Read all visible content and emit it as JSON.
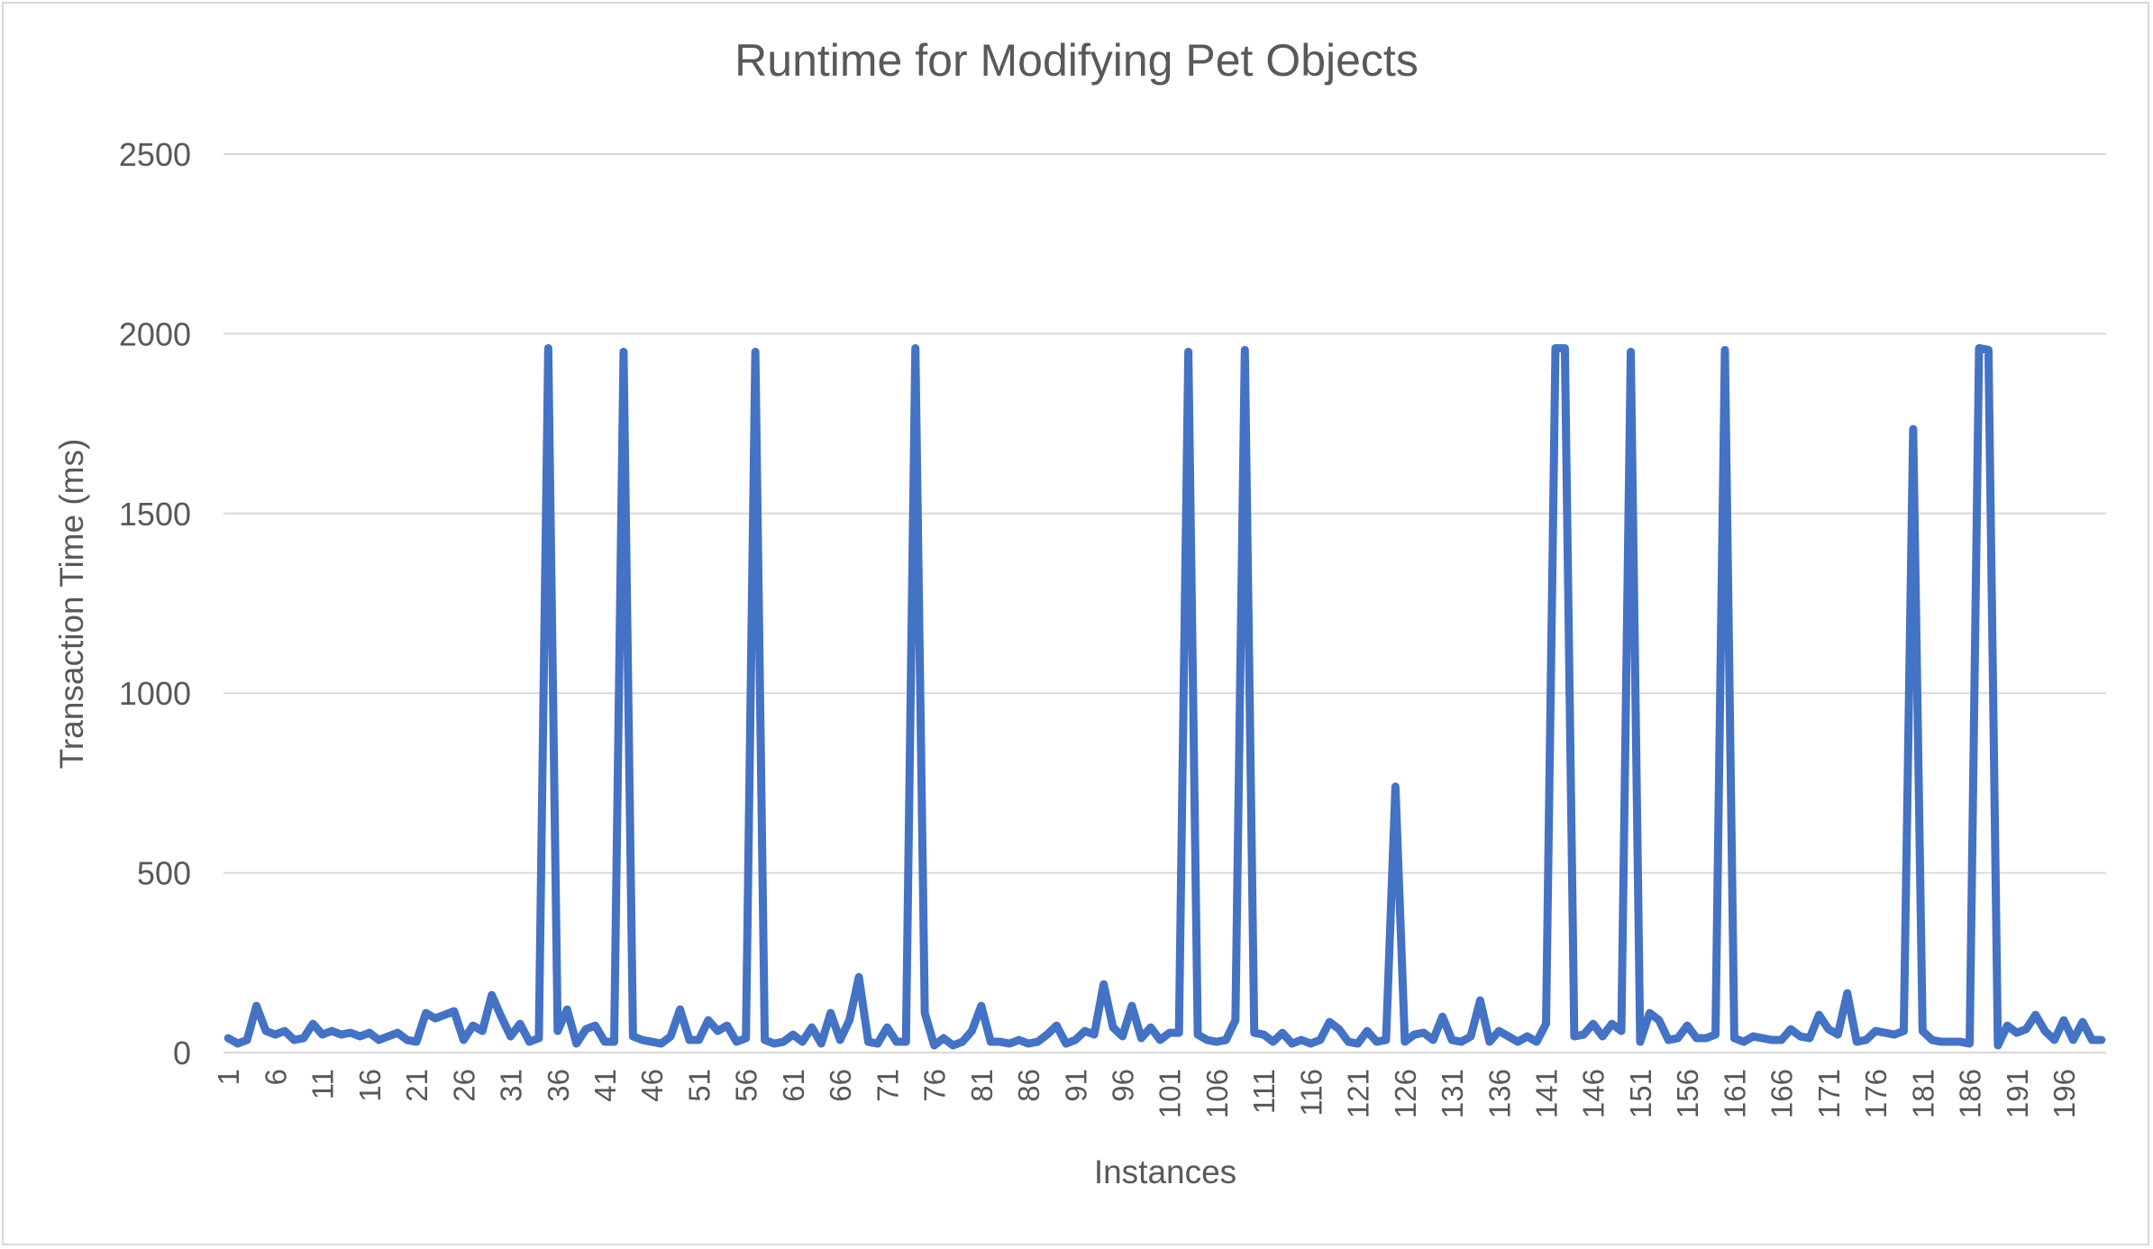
{
  "chart_data": {
    "type": "line",
    "title": "Runtime for Modifying Pet Objects",
    "xlabel": "Instances",
    "ylabel": "Transaction Time (ms)",
    "ylim": [
      0,
      2500
    ],
    "yticks": [
      0,
      500,
      1000,
      1500,
      2000,
      2500
    ],
    "grid": true,
    "legend": "none",
    "line_color": "#4472C4",
    "x_tick_labels": [
      "1",
      "6",
      "11",
      "16",
      "21",
      "26",
      "31",
      "36",
      "41",
      "46",
      "51",
      "56",
      "61",
      "66",
      "71",
      "76",
      "81",
      "86",
      "91",
      "96",
      "101",
      "106",
      "111",
      "116",
      "121",
      "126",
      "131",
      "136",
      "141",
      "146",
      "151",
      "156",
      "161",
      "166",
      "171",
      "176",
      "181",
      "186",
      "191",
      "196"
    ],
    "x": [
      1,
      2,
      3,
      4,
      5,
      6,
      7,
      8,
      9,
      10,
      11,
      12,
      13,
      14,
      15,
      16,
      17,
      18,
      19,
      20,
      21,
      22,
      23,
      24,
      25,
      26,
      27,
      28,
      29,
      30,
      31,
      32,
      33,
      34,
      35,
      36,
      37,
      38,
      39,
      40,
      41,
      42,
      43,
      44,
      45,
      46,
      47,
      48,
      49,
      50,
      51,
      52,
      53,
      54,
      55,
      56,
      57,
      58,
      59,
      60,
      61,
      62,
      63,
      64,
      65,
      66,
      67,
      68,
      69,
      70,
      71,
      72,
      73,
      74,
      75,
      76,
      77,
      78,
      79,
      80,
      81,
      82,
      83,
      84,
      85,
      86,
      87,
      88,
      89,
      90,
      91,
      92,
      93,
      94,
      95,
      96,
      97,
      98,
      99,
      100,
      101,
      102,
      103,
      104,
      105,
      106,
      107,
      108,
      109,
      110,
      111,
      112,
      113,
      114,
      115,
      116,
      117,
      118,
      119,
      120,
      121,
      122,
      123,
      124,
      125,
      126,
      127,
      128,
      129,
      130,
      131,
      132,
      133,
      134,
      135,
      136,
      137,
      138,
      139,
      140,
      141,
      142,
      143,
      144,
      145,
      146,
      147,
      148,
      149,
      150,
      151,
      152,
      153,
      154,
      155,
      156,
      157,
      158,
      159,
      160,
      161,
      162,
      163,
      164,
      165,
      166,
      167,
      168,
      169,
      170,
      171,
      172,
      173,
      174,
      175,
      176,
      177,
      178,
      179,
      180,
      181,
      182,
      183,
      184,
      185,
      186,
      187,
      188,
      189,
      190,
      191,
      192,
      193,
      194,
      195,
      196,
      197,
      198,
      199,
      200
    ],
    "series": [
      {
        "values": [
          40,
          25,
          35,
          130,
          60,
          50,
          60,
          35,
          40,
          80,
          50,
          60,
          50,
          55,
          45,
          55,
          35,
          45,
          55,
          35,
          30,
          110,
          95,
          105,
          115,
          35,
          75,
          60,
          160,
          100,
          45,
          80,
          30,
          40,
          1960,
          60,
          120,
          25,
          65,
          75,
          30,
          30,
          1950,
          45,
          35,
          30,
          25,
          45,
          120,
          35,
          35,
          90,
          60,
          75,
          30,
          40,
          1950,
          35,
          25,
          30,
          50,
          30,
          70,
          25,
          110,
          35,
          90,
          210,
          30,
          25,
          70,
          30,
          30,
          1960,
          110,
          20,
          40,
          20,
          30,
          60,
          130,
          30,
          30,
          25,
          35,
          25,
          30,
          50,
          75,
          25,
          35,
          60,
          50,
          190,
          70,
          45,
          130,
          40,
          70,
          35,
          55,
          55,
          1950,
          50,
          35,
          30,
          35,
          90,
          1955,
          55,
          50,
          30,
          55,
          25,
          35,
          25,
          35,
          85,
          65,
          30,
          25,
          60,
          30,
          35,
          740,
          30,
          50,
          55,
          35,
          100,
          35,
          30,
          45,
          145,
          30,
          60,
          45,
          30,
          45,
          30,
          80,
          1960,
          1960,
          45,
          50,
          80,
          45,
          80,
          60,
          1950,
          30,
          110,
          90,
          35,
          40,
          75,
          40,
          40,
          50,
          1955,
          40,
          30,
          45,
          40,
          35,
          35,
          65,
          45,
          40,
          105,
          65,
          50,
          165,
          30,
          35,
          60,
          55,
          50,
          60,
          1735,
          60,
          35,
          30,
          30,
          30,
          25,
          1960,
          1955,
          20,
          75,
          55,
          65,
          105,
          60,
          35,
          90,
          35,
          85,
          35,
          35
        ]
      }
    ]
  }
}
